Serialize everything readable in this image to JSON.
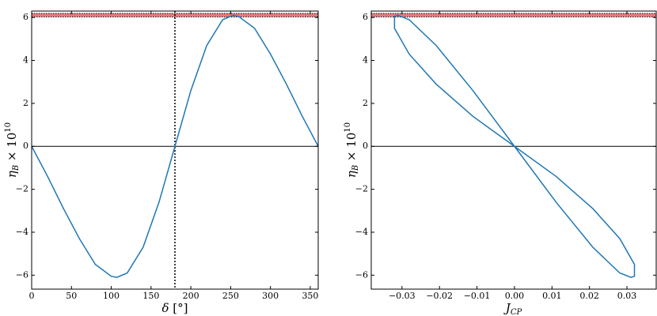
{
  "chart_data": [
    {
      "type": "line",
      "xlabel": {
        "base": "δ",
        "rest": " [°]"
      },
      "ylabel": {
        "base": "η",
        "sub": "B",
        "mid": " × 10",
        "sup": "10"
      },
      "xlim": [
        0,
        360
      ],
      "ylim": [
        -6.65,
        6.3
      ],
      "xticks": [
        0,
        50,
        100,
        150,
        200,
        250,
        300,
        350
      ],
      "yticks": [
        {
          "value": -6,
          "label": "−6"
        },
        {
          "value": -4,
          "label": "−4"
        },
        {
          "value": -2,
          "label": "−2"
        },
        0,
        2,
        4,
        6
      ],
      "reference_band": {
        "range": [
          6.03,
          6.19
        ],
        "color": "#d62728"
      },
      "hline": 0,
      "vline": 180,
      "series": [
        {
          "color": "#1f77b4",
          "x": [
            0,
            20,
            40,
            60,
            80,
            100,
            107,
            120,
            140,
            160,
            180,
            200,
            220,
            240,
            253,
            260,
            280,
            300,
            320,
            340,
            360
          ],
          "values": [
            0,
            -1.4,
            -2.9,
            -4.3,
            -5.5,
            -6.05,
            -6.1,
            -5.9,
            -4.7,
            -2.6,
            0,
            2.6,
            4.7,
            5.9,
            6.1,
            6.05,
            5.5,
            4.3,
            2.9,
            1.4,
            0
          ]
        }
      ]
    },
    {
      "type": "line",
      "xlabel": {
        "base": "J",
        "sub": "CP"
      },
      "ylabel": {
        "base": "η",
        "sub": "B",
        "mid": " × 10",
        "sup": "10"
      },
      "xlim": [
        -0.0382,
        0.0378
      ],
      "ylim": [
        -6.65,
        6.3
      ],
      "xticks": [
        {
          "value": -0.03,
          "label": "−0.03"
        },
        {
          "value": -0.02,
          "label": "−0.02"
        },
        {
          "value": -0.01,
          "label": "−0.01"
        },
        {
          "value": 0,
          "label": "0.00"
        },
        0.01,
        0.02,
        0.03
      ],
      "yticks": [
        {
          "value": -6,
          "label": "−6"
        },
        {
          "value": -4,
          "label": "−4"
        },
        {
          "value": -2,
          "label": "−2"
        },
        0,
        2,
        4,
        6
      ],
      "reference_band": {
        "range": [
          6.03,
          6.19
        ],
        "color": "#d62728"
      },
      "hline": 0,
      "series": [
        {
          "color": "#1f77b4",
          "x": [
            0,
            0.0111,
            0.0209,
            0.0281,
            0.032,
            0.032,
            0.0311,
            0.0281,
            0.0209,
            0.0111,
            0,
            -0.0111,
            -0.0209,
            -0.0281,
            -0.0311,
            -0.032,
            -0.032,
            -0.0281,
            -0.0209,
            -0.0111,
            0
          ],
          "values": [
            0,
            -1.4,
            -2.9,
            -4.3,
            -5.5,
            -6.05,
            -6.1,
            -5.9,
            -4.7,
            -2.6,
            0,
            2.6,
            4.7,
            5.9,
            6.1,
            6.05,
            5.5,
            4.3,
            2.9,
            1.4,
            0
          ]
        }
      ]
    }
  ]
}
